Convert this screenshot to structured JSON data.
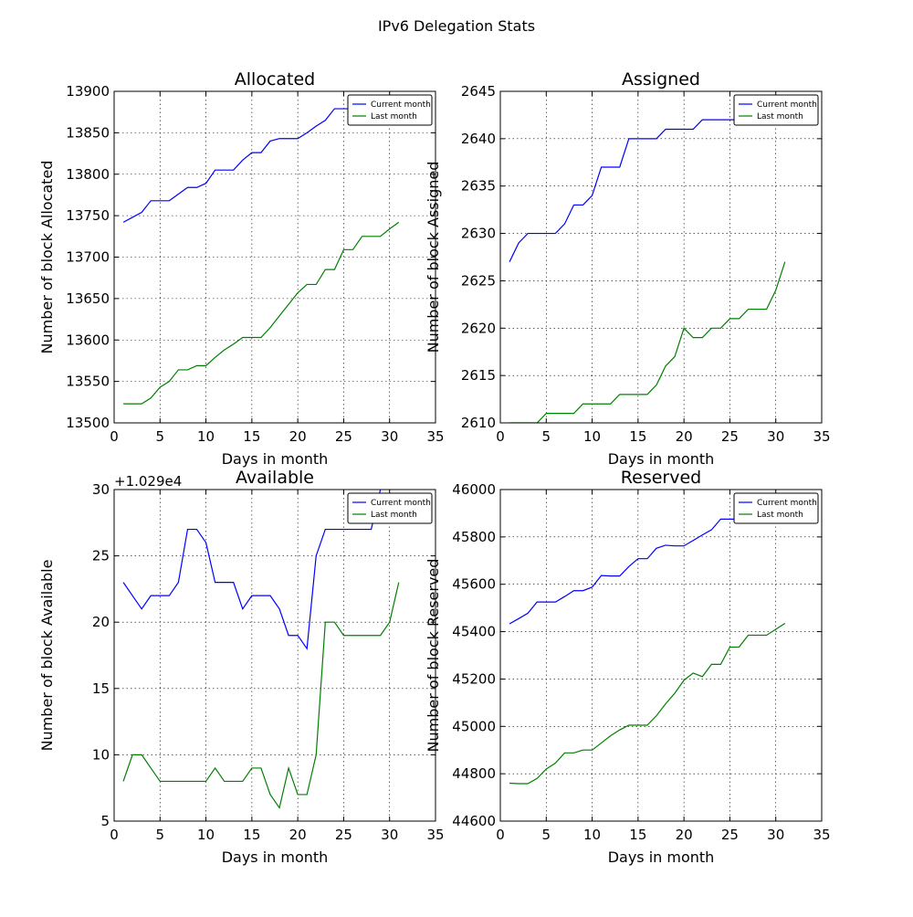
{
  "figure": {
    "title": "IPv6 Delegation Stats"
  },
  "chart_data": [
    {
      "type": "line",
      "title": "Allocated",
      "xlabel": "Days in month",
      "ylabel": "Number of block Allocated",
      "xlim": [
        0,
        35
      ],
      "ylim": [
        13500,
        13900
      ],
      "xticks": [
        0,
        5,
        10,
        15,
        20,
        25,
        30,
        35
      ],
      "yticks": [
        13500,
        13550,
        13600,
        13650,
        13700,
        13750,
        13800,
        13850,
        13900
      ],
      "y_offset_label": "",
      "grid": true,
      "legend_position": "top-right",
      "series": [
        {
          "name": "Current month",
          "color": "#0000ff",
          "x": [
            1,
            2,
            3,
            4,
            5,
            6,
            7,
            8,
            9,
            10,
            11,
            12,
            13,
            14,
            15,
            16,
            17,
            18,
            19,
            20,
            21,
            22,
            23,
            24,
            25,
            26,
            27,
            28
          ],
          "y": [
            13742,
            13748,
            13754,
            13768,
            13768,
            13768,
            13776,
            13784,
            13784,
            13789,
            13805,
            13805,
            13805,
            13817,
            13826,
            13826,
            13840,
            13843,
            13843,
            13843,
            13850,
            13858,
            13865,
            13879,
            13879,
            13879,
            13879,
            13879
          ]
        },
        {
          "name": "Last month",
          "color": "#008000",
          "x": [
            1,
            2,
            3,
            4,
            5,
            6,
            7,
            8,
            9,
            10,
            11,
            12,
            13,
            14,
            15,
            16,
            17,
            18,
            19,
            20,
            21,
            22,
            23,
            24,
            25,
            26,
            27,
            28,
            29,
            30,
            31
          ],
          "y": [
            13523,
            13523,
            13523,
            13530,
            13543,
            13550,
            13564,
            13564,
            13569,
            13569,
            13579,
            13588,
            13595,
            13603,
            13603,
            13603,
            13615,
            13629,
            13643,
            13657,
            13667,
            13667,
            13685,
            13685,
            13709,
            13709,
            13725,
            13725,
            13725,
            13734,
            13742
          ]
        }
      ]
    },
    {
      "type": "line",
      "title": "Assigned",
      "xlabel": "Days in month",
      "ylabel": "Number of block Assigned",
      "xlim": [
        0,
        35
      ],
      "ylim": [
        2610,
        2645
      ],
      "xticks": [
        0,
        5,
        10,
        15,
        20,
        25,
        30,
        35
      ],
      "yticks": [
        2610,
        2615,
        2620,
        2625,
        2630,
        2635,
        2640,
        2645
      ],
      "y_offset_label": "",
      "grid": true,
      "legend_position": "top-right",
      "series": [
        {
          "name": "Current month",
          "color": "#0000ff",
          "x": [
            1,
            2,
            3,
            4,
            5,
            6,
            7,
            8,
            9,
            10,
            11,
            12,
            13,
            14,
            15,
            16,
            17,
            18,
            19,
            20,
            21,
            22,
            23,
            24,
            25,
            26,
            27,
            28
          ],
          "y": [
            2627,
            2629,
            2630,
            2630,
            2630,
            2630,
            2631,
            2633,
            2633,
            2634,
            2637,
            2637,
            2637,
            2640,
            2640,
            2640,
            2640,
            2641,
            2641,
            2641,
            2641,
            2642,
            2642,
            2642,
            2642,
            2642,
            2642,
            2642
          ]
        },
        {
          "name": "Last month",
          "color": "#008000",
          "x": [
            1,
            2,
            3,
            4,
            5,
            6,
            7,
            8,
            9,
            10,
            11,
            12,
            13,
            14,
            15,
            16,
            17,
            18,
            19,
            20,
            21,
            22,
            23,
            24,
            25,
            26,
            27,
            28,
            29,
            30,
            31
          ],
          "y": [
            2610,
            2610,
            2610,
            2610,
            2611,
            2611,
            2611,
            2611,
            2612,
            2612,
            2612,
            2612,
            2613,
            2613,
            2613,
            2613,
            2614,
            2616,
            2617,
            2620,
            2619,
            2619,
            2620,
            2620,
            2621,
            2621,
            2622,
            2622,
            2622,
            2624,
            2627
          ]
        }
      ]
    },
    {
      "type": "line",
      "title": "Available",
      "xlabel": "Days in month",
      "ylabel": "Number of block Available",
      "xlim": [
        0,
        35
      ],
      "ylim": [
        5,
        30
      ],
      "xticks": [
        0,
        5,
        10,
        15,
        20,
        25,
        30,
        35
      ],
      "yticks": [
        5,
        10,
        15,
        20,
        25,
        30
      ],
      "y_offset_label": "+1.029e4",
      "grid": true,
      "legend_position": "top-right",
      "series": [
        {
          "name": "Current month",
          "color": "#0000ff",
          "x": [
            1,
            2,
            3,
            4,
            5,
            6,
            7,
            8,
            9,
            10,
            11,
            12,
            13,
            14,
            15,
            16,
            17,
            18,
            19,
            20,
            21,
            22,
            23,
            24,
            25,
            26,
            27,
            28,
            29
          ],
          "y": [
            23,
            22,
            21,
            22,
            22,
            22,
            23,
            27,
            27,
            26,
            23,
            23,
            23,
            21,
            22,
            22,
            22,
            21,
            19,
            19,
            18,
            25,
            27,
            27,
            27,
            27,
            27,
            27,
            30
          ]
        },
        {
          "name": "Last month",
          "color": "#008000",
          "x": [
            1,
            2,
            3,
            4,
            5,
            6,
            7,
            8,
            9,
            10,
            11,
            12,
            13,
            14,
            15,
            16,
            17,
            18,
            19,
            20,
            21,
            22,
            23,
            24,
            25,
            26,
            27,
            28,
            29,
            30,
            31
          ],
          "y": [
            8,
            10,
            10,
            9,
            8,
            8,
            8,
            8,
            8,
            8,
            9,
            8,
            8,
            8,
            9,
            9,
            7,
            6,
            9,
            7,
            7,
            10,
            20,
            20,
            19,
            19,
            19,
            19,
            19,
            20,
            23
          ]
        }
      ]
    },
    {
      "type": "line",
      "title": "Reserved",
      "xlabel": "Days in month",
      "ylabel": "Number of block Reserved",
      "xlim": [
        0,
        35
      ],
      "ylim": [
        44600,
        46000
      ],
      "xticks": [
        0,
        5,
        10,
        15,
        20,
        25,
        30,
        35
      ],
      "yticks": [
        44600,
        44800,
        45000,
        45200,
        45400,
        45600,
        45800,
        46000
      ],
      "y_offset_label": "",
      "grid": true,
      "legend_position": "top-right",
      "series": [
        {
          "name": "Current month",
          "color": "#0000ff",
          "x": [
            1,
            2,
            3,
            4,
            5,
            6,
            7,
            8,
            9,
            10,
            11,
            12,
            13,
            14,
            15,
            16,
            17,
            18,
            19,
            20,
            21,
            22,
            23,
            24,
            25,
            26,
            27,
            28
          ],
          "y": [
            45433,
            45455,
            45478,
            45525,
            45525,
            45525,
            45548,
            45573,
            45573,
            45588,
            45637,
            45635,
            45635,
            45675,
            45708,
            45708,
            45752,
            45765,
            45762,
            45762,
            45785,
            45808,
            45830,
            45875,
            45875,
            45875,
            45875,
            45875
          ]
        },
        {
          "name": "Last month",
          "color": "#008000",
          "x": [
            1,
            2,
            3,
            4,
            5,
            6,
            7,
            8,
            9,
            10,
            11,
            12,
            13,
            14,
            15,
            16,
            17,
            18,
            19,
            20,
            21,
            22,
            23,
            24,
            25,
            26,
            27,
            28,
            29,
            30,
            31
          ],
          "y": [
            44760,
            44758,
            44758,
            44780,
            44820,
            44845,
            44888,
            44888,
            44900,
            44900,
            44930,
            44960,
            44985,
            45005,
            45005,
            45005,
            45045,
            45095,
            45140,
            45195,
            45225,
            45210,
            45262,
            45262,
            45335,
            45335,
            45385,
            45385,
            45385,
            45410,
            45435
          ]
        }
      ]
    }
  ]
}
